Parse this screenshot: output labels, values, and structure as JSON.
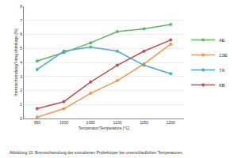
{
  "chart_data": {
    "type": "line",
    "x_label": "Temperatur/Temperature [°C]",
    "y_label": "Brennschwindung/Firing shrinkage [%]",
    "annotations": [
      "Abbildung 10: Brennschwindung der extrudierten Probekörper bei unterschiedlichen Temperaturen."
    ],
    "x": [
      950,
      1000,
      1050,
      1100,
      1150,
      1200
    ],
    "series": [
      {
        "name": "4E",
        "color": "#5cb85c",
        "values": [
          4.1,
          4.7,
          5.4,
          6.2,
          6.4,
          6.7
        ]
      },
      {
        "name": "13E",
        "color": "#f79646",
        "values": [
          0.1,
          0.7,
          1.8,
          2.7,
          3.9,
          5.3
        ]
      },
      {
        "name": "7A",
        "color": "#4bacc6",
        "values": [
          3.5,
          4.8,
          5.1,
          4.8,
          3.8,
          3.2
        ]
      },
      {
        "name": "6B",
        "color": "#c0504d",
        "values": [
          0.7,
          1.2,
          2.6,
          3.8,
          4.8,
          5.6
        ]
      }
    ],
    "xlim": [
      925,
      1225
    ],
    "xticks": [
      950,
      1000,
      1050,
      1100,
      1150,
      1200
    ],
    "ylim": [
      0,
      8
    ],
    "yticks": [
      0,
      1,
      2,
      3,
      4,
      5,
      6,
      7,
      8
    ],
    "grid": true,
    "legend": "right",
    "marker": "circle"
  }
}
